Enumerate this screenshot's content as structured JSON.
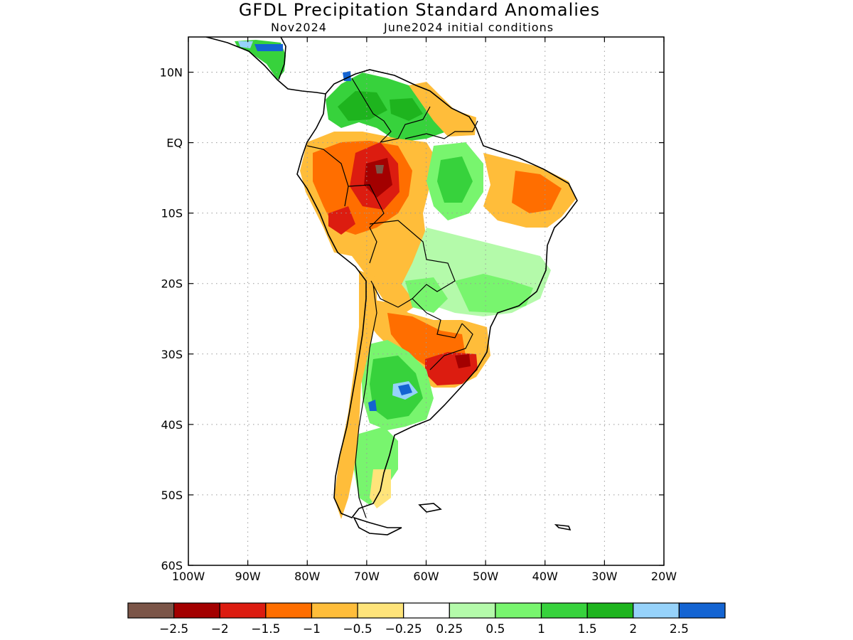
{
  "header": {
    "title": "GFDL Precipitation Standard Anomalies",
    "valid": "Nov2024",
    "init": "June2024 initial conditions"
  },
  "map": {
    "lon_range": [
      -100,
      -20
    ],
    "lat_range": [
      -60,
      15
    ],
    "lat_ticks": [
      {
        "value": 10,
        "label": "10N"
      },
      {
        "value": 0,
        "label": "EQ"
      },
      {
        "value": -10,
        "label": "10S"
      },
      {
        "value": -20,
        "label": "20S"
      },
      {
        "value": -30,
        "label": "30S"
      },
      {
        "value": -40,
        "label": "40S"
      },
      {
        "value": -50,
        "label": "50S"
      },
      {
        "value": -60,
        "label": "60S"
      }
    ],
    "lon_ticks": [
      {
        "value": -100,
        "label": "100W"
      },
      {
        "value": -90,
        "label": "90W"
      },
      {
        "value": -80,
        "label": "80W"
      },
      {
        "value": -70,
        "label": "70W"
      },
      {
        "value": -60,
        "label": "60W"
      },
      {
        "value": -50,
        "label": "50W"
      },
      {
        "value": -40,
        "label": "40W"
      },
      {
        "value": -30,
        "label": "30W"
      },
      {
        "value": -20,
        "label": "20W"
      }
    ],
    "grid": true
  },
  "colorbar": {
    "colors": [
      "#7b5548",
      "#a30000",
      "#dc1c10",
      "#ff6e00",
      "#ffbd3a",
      "#ffe47a",
      "#ffffff",
      "#b4faaa",
      "#78f56e",
      "#37d23c",
      "#1eb41e",
      "#96d2fa",
      "#1464d2"
    ],
    "labels": [
      "−2.5",
      "−2",
      "−1.5",
      "−1",
      "−0.5",
      "−0.25",
      "0.25",
      "0.5",
      "1",
      "1.5",
      "2",
      "2.5"
    ]
  }
}
